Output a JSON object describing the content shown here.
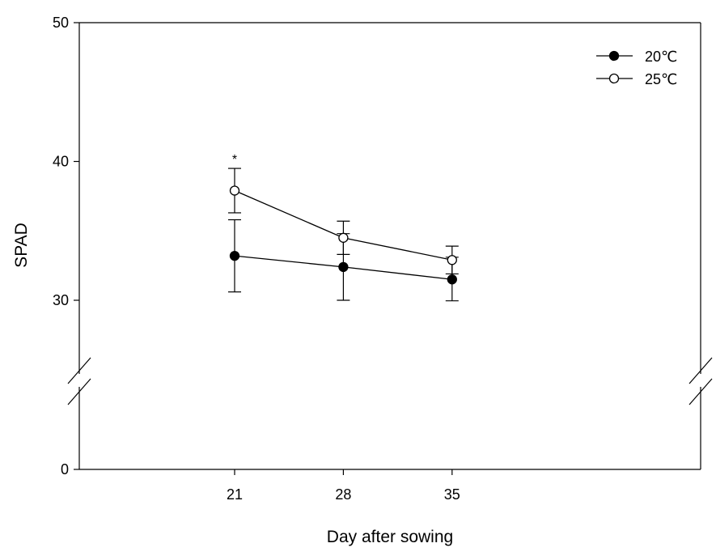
{
  "chart_data": {
    "type": "line",
    "title": "",
    "xlabel": "Day after sowing",
    "ylabel": "SPAD",
    "x": [
      21,
      28,
      35
    ],
    "x_ticks": [
      "21",
      "28",
      "35"
    ],
    "y_ticks": [
      {
        "value": 0,
        "label": "0"
      },
      {
        "value": 30,
        "label": "30"
      },
      {
        "value": 40,
        "label": "40"
      },
      {
        "value": 50,
        "label": "50"
      }
    ],
    "ylim": [
      0,
      50
    ],
    "y_axis_break": true,
    "legend_position": "top-right",
    "series": [
      {
        "name": "20℃",
        "marker": "filled-circle",
        "color": "#000000",
        "values": [
          33.2,
          32.4,
          31.5
        ],
        "errors": [
          2.6,
          2.4,
          1.6
        ]
      },
      {
        "name": "25℃",
        "marker": "open-circle",
        "color": "#000000",
        "values": [
          37.9,
          34.5,
          32.9
        ],
        "errors": [
          1.6,
          1.2,
          1.0
        ]
      }
    ],
    "annotations": [
      {
        "x": 21,
        "text": "*"
      }
    ]
  }
}
